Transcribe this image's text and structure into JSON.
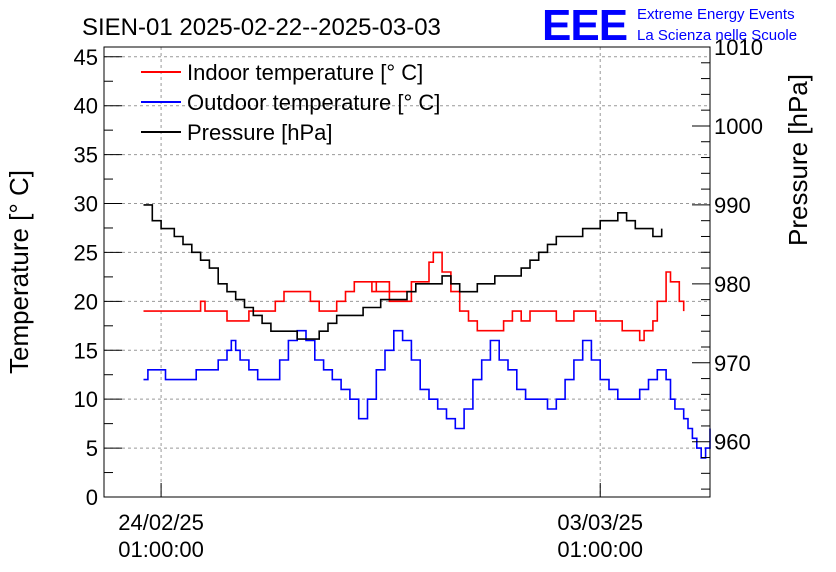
{
  "chart_data": {
    "type": "line",
    "title": "SIEN-01 2025-02-22--2025-03-03",
    "logo": {
      "mark": "EEE",
      "line1": "Extreme Energy Events",
      "line2": "La Scienza nelle Scuole"
    },
    "ylabel": "Temperature [° C]",
    "y2label": "Pressure [hPa]",
    "xlabel": "",
    "ylim": [
      0,
      46
    ],
    "y2lim": [
      953,
      1010
    ],
    "xlim": [
      -0.13,
      1.25
    ],
    "yticks": [
      0,
      5,
      10,
      15,
      20,
      25,
      30,
      35,
      40,
      45
    ],
    "y2ticks": [
      960,
      970,
      980,
      990,
      1000,
      1010
    ],
    "xticks": [
      {
        "value": 0,
        "line1": "24/02/25",
        "line2": "01:00:00"
      },
      {
        "value": 1,
        "line1": "03/03/25",
        "line2": "01:00:00"
      }
    ],
    "grid": true,
    "legend_position": "top-left",
    "colors": {
      "indoor": "#ff0000",
      "outdoor": "#0000ff",
      "pressure": "#000000",
      "logo": "#0000ff"
    },
    "series": [
      {
        "name": "Indoor temperature [° C]",
        "axis": "left",
        "color": "#ff0000",
        "points": [
          [
            -0.04,
            19
          ],
          [
            0.04,
            19
          ],
          [
            0.09,
            20
          ],
          [
            0.1,
            19
          ],
          [
            0.14,
            19
          ],
          [
            0.15,
            18
          ],
          [
            0.17,
            18
          ],
          [
            0.2,
            19
          ],
          [
            0.26,
            20
          ],
          [
            0.28,
            21
          ],
          [
            0.33,
            21
          ],
          [
            0.34,
            20
          ],
          [
            0.36,
            19
          ],
          [
            0.38,
            19
          ],
          [
            0.4,
            20
          ],
          [
            0.42,
            21
          ],
          [
            0.44,
            22
          ],
          [
            0.48,
            22
          ],
          [
            0.49,
            21
          ],
          [
            0.52,
            20
          ],
          [
            0.55,
            20
          ],
          [
            0.57,
            21
          ],
          [
            0.5,
            21
          ],
          [
            0.48,
            22
          ],
          [
            0.5,
            22
          ],
          [
            0.52,
            21
          ],
          [
            0.55,
            21
          ],
          [
            0.57,
            22
          ],
          [
            0.59,
            22
          ],
          [
            0.61,
            24
          ],
          [
            0.62,
            25
          ],
          [
            0.64,
            23
          ],
          [
            0.66,
            21
          ],
          [
            0.68,
            19
          ],
          [
            0.7,
            18
          ],
          [
            0.72,
            17
          ],
          [
            0.76,
            17
          ],
          [
            0.78,
            18
          ],
          [
            0.8,
            19
          ],
          [
            0.82,
            18
          ],
          [
            0.84,
            19
          ],
          [
            0.88,
            19
          ],
          [
            0.9,
            18
          ],
          [
            0.92,
            18
          ],
          [
            0.94,
            19
          ],
          [
            0.97,
            19
          ],
          [
            0.99,
            18
          ],
          [
            1.0,
            18
          ],
          [
            1.03,
            18
          ],
          [
            1.05,
            17
          ],
          [
            1.08,
            17
          ],
          [
            1.09,
            16
          ],
          [
            1.1,
            17
          ],
          [
            1.12,
            18
          ],
          [
            1.13,
            20
          ],
          [
            1.15,
            23
          ],
          [
            1.16,
            22
          ],
          [
            1.18,
            20
          ],
          [
            1.19,
            19
          ]
        ]
      },
      {
        "name": "Outdoor temperature [° C]",
        "axis": "left",
        "color": "#0000ff",
        "points": [
          [
            -0.04,
            12
          ],
          [
            -0.03,
            13
          ],
          [
            0.0,
            13
          ],
          [
            0.01,
            12
          ],
          [
            0.07,
            12
          ],
          [
            0.08,
            13
          ],
          [
            0.12,
            13
          ],
          [
            0.13,
            14
          ],
          [
            0.15,
            15
          ],
          [
            0.16,
            16
          ],
          [
            0.17,
            15
          ],
          [
            0.18,
            14
          ],
          [
            0.2,
            13
          ],
          [
            0.22,
            12
          ],
          [
            0.25,
            12
          ],
          [
            0.27,
            14
          ],
          [
            0.29,
            16
          ],
          [
            0.31,
            17
          ],
          [
            0.33,
            16
          ],
          [
            0.35,
            14
          ],
          [
            0.37,
            13
          ],
          [
            0.39,
            12
          ],
          [
            0.41,
            11
          ],
          [
            0.43,
            10
          ],
          [
            0.45,
            8
          ],
          [
            0.47,
            10
          ],
          [
            0.49,
            13
          ],
          [
            0.51,
            15
          ],
          [
            0.53,
            17
          ],
          [
            0.55,
            16
          ],
          [
            0.57,
            14
          ],
          [
            0.59,
            11
          ],
          [
            0.61,
            10
          ],
          [
            0.63,
            9
          ],
          [
            0.65,
            8
          ],
          [
            0.67,
            7
          ],
          [
            0.69,
            9
          ],
          [
            0.71,
            12
          ],
          [
            0.73,
            14
          ],
          [
            0.75,
            16
          ],
          [
            0.77,
            14
          ],
          [
            0.79,
            13
          ],
          [
            0.81,
            11
          ],
          [
            0.83,
            10
          ],
          [
            0.86,
            10
          ],
          [
            0.88,
            9
          ],
          [
            0.9,
            10
          ],
          [
            0.92,
            12
          ],
          [
            0.94,
            14
          ],
          [
            0.96,
            16
          ],
          [
            0.98,
            14
          ],
          [
            1.0,
            12
          ],
          [
            1.02,
            11
          ],
          [
            1.04,
            10
          ],
          [
            1.07,
            10
          ],
          [
            1.09,
            11
          ],
          [
            1.11,
            12
          ],
          [
            1.13,
            13
          ],
          [
            1.15,
            12
          ],
          [
            1.16,
            10
          ],
          [
            1.17,
            9
          ],
          [
            1.19,
            8
          ],
          [
            1.2,
            7
          ],
          [
            1.21,
            6
          ],
          [
            1.22,
            5
          ],
          [
            1.23,
            4
          ],
          [
            1.24,
            5
          ],
          [
            1.25,
            7
          ]
        ]
      },
      {
        "name": "Pressure [hPa]",
        "axis": "right",
        "color": "#000000",
        "points": [
          [
            -0.04,
            990
          ],
          [
            -0.02,
            988
          ],
          [
            0.0,
            987
          ],
          [
            0.03,
            986
          ],
          [
            0.05,
            985
          ],
          [
            0.07,
            984
          ],
          [
            0.09,
            983
          ],
          [
            0.11,
            982
          ],
          [
            0.13,
            980
          ],
          [
            0.15,
            979
          ],
          [
            0.17,
            978
          ],
          [
            0.19,
            977
          ],
          [
            0.21,
            976
          ],
          [
            0.23,
            975
          ],
          [
            0.25,
            974
          ],
          [
            0.29,
            974
          ],
          [
            0.31,
            973
          ],
          [
            0.34,
            973
          ],
          [
            0.36,
            974
          ],
          [
            0.38,
            975
          ],
          [
            0.4,
            976
          ],
          [
            0.44,
            976
          ],
          [
            0.46,
            977
          ],
          [
            0.48,
            977
          ],
          [
            0.5,
            978
          ],
          [
            0.54,
            978
          ],
          [
            0.56,
            979
          ],
          [
            0.58,
            980
          ],
          [
            0.62,
            980
          ],
          [
            0.64,
            981
          ],
          [
            0.66,
            980
          ],
          [
            0.68,
            979
          ],
          [
            0.7,
            979
          ],
          [
            0.72,
            980
          ],
          [
            0.74,
            980
          ],
          [
            0.76,
            981
          ],
          [
            0.8,
            981
          ],
          [
            0.82,
            982
          ],
          [
            0.84,
            983
          ],
          [
            0.86,
            984
          ],
          [
            0.88,
            985
          ],
          [
            0.9,
            986
          ],
          [
            0.94,
            986
          ],
          [
            0.96,
            987
          ],
          [
            0.98,
            987
          ],
          [
            1.0,
            988
          ],
          [
            1.02,
            988
          ],
          [
            1.04,
            989
          ],
          [
            1.06,
            988
          ],
          [
            1.08,
            987
          ],
          [
            1.1,
            987
          ],
          [
            1.12,
            986
          ],
          [
            1.14,
            987
          ]
        ]
      }
    ]
  }
}
